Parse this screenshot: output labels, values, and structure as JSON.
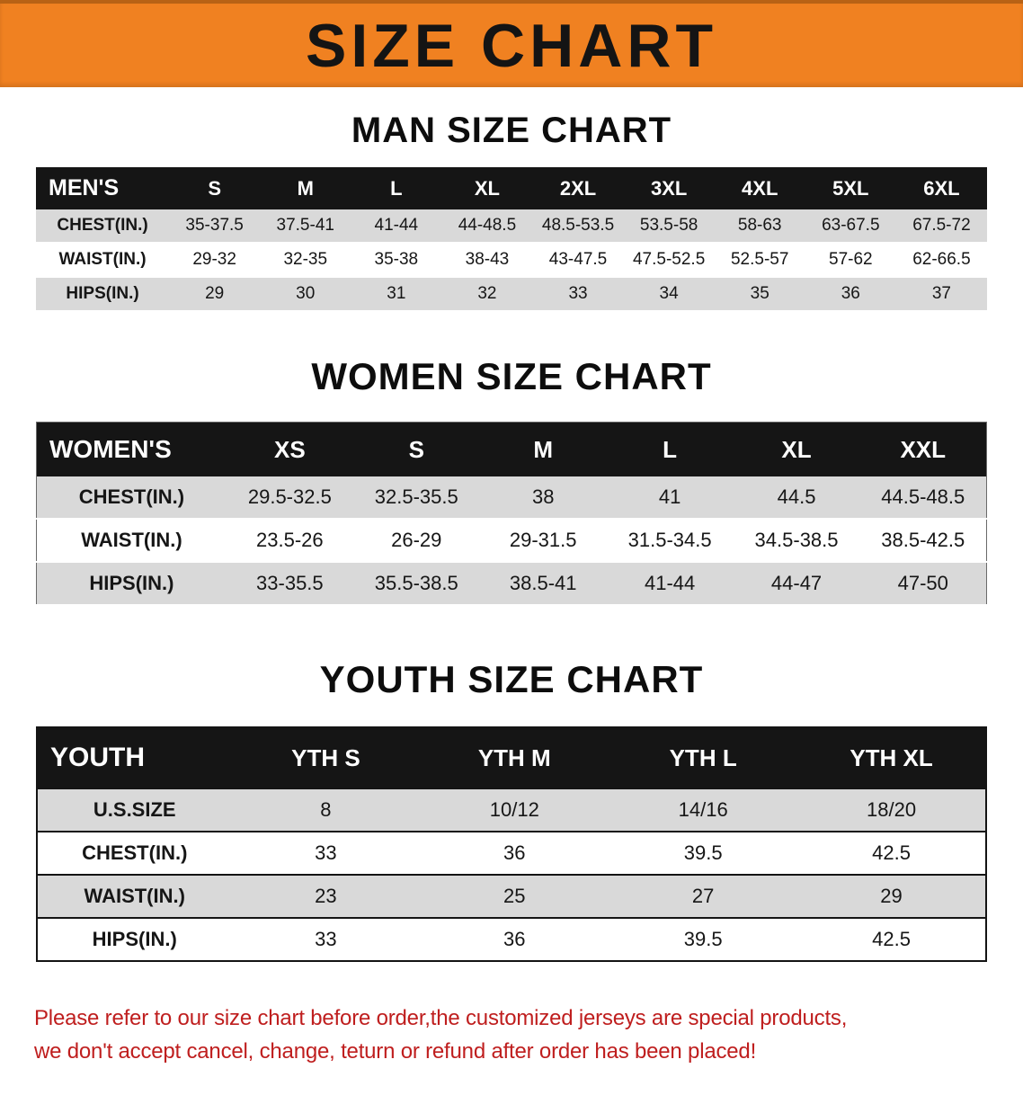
{
  "banner": {
    "title": "SIZE CHART"
  },
  "colors": {
    "banner_bg": "#f08121",
    "table_header_bg": "#151515",
    "row_alt_bg": "#d9d9d9",
    "footer_text": "#bf1e1e"
  },
  "sections": [
    {
      "heading": "MAN SIZE CHART",
      "table": {
        "header": [
          "MEN'S",
          "S",
          "M",
          "L",
          "XL",
          "2XL",
          "3XL",
          "4XL",
          "5XL",
          "6XL"
        ],
        "rows": [
          {
            "label": "CHEST(IN.)",
            "values": [
              "35-37.5",
              "37.5-41",
              "41-44",
              "44-48.5",
              "48.5-53.5",
              "53.5-58",
              "58-63",
              "63-67.5",
              "67.5-72"
            ]
          },
          {
            "label": "WAIST(IN.)",
            "values": [
              "29-32",
              "32-35",
              "35-38",
              "38-43",
              "43-47.5",
              "47.5-52.5",
              "52.5-57",
              "57-62",
              "62-66.5"
            ]
          },
          {
            "label": "HIPS(IN.)",
            "values": [
              "29",
              "30",
              "31",
              "32",
              "33",
              "34",
              "35",
              "36",
              "37"
            ]
          }
        ]
      }
    },
    {
      "heading": "WOMEN SIZE CHART",
      "table": {
        "header": [
          "WOMEN'S",
          "XS",
          "S",
          "M",
          "L",
          "XL",
          "XXL"
        ],
        "rows": [
          {
            "label": "CHEST(IN.)",
            "values": [
              "29.5-32.5",
              "32.5-35.5",
              "38",
              "41",
              "44.5",
              "44.5-48.5"
            ]
          },
          {
            "label": "WAIST(IN.)",
            "values": [
              "23.5-26",
              "26-29",
              "29-31.5",
              "31.5-34.5",
              "34.5-38.5",
              "38.5-42.5"
            ]
          },
          {
            "label": "HIPS(IN.)",
            "values": [
              "33-35.5",
              "35.5-38.5",
              "38.5-41",
              "41-44",
              "44-47",
              "47-50"
            ]
          }
        ]
      }
    },
    {
      "heading": "YOUTH SIZE CHART",
      "table": {
        "header": [
          "YOUTH",
          "YTH S",
          "YTH M",
          "YTH L",
          "YTH XL"
        ],
        "rows": [
          {
            "label": "U.S.SIZE",
            "values": [
              "8",
              "10/12",
              "14/16",
              "18/20"
            ]
          },
          {
            "label": "CHEST(IN.)",
            "values": [
              "33",
              "36",
              "39.5",
              "42.5"
            ]
          },
          {
            "label": "WAIST(IN.)",
            "values": [
              "23",
              "25",
              "27",
              "29"
            ]
          },
          {
            "label": "HIPS(IN.)",
            "values": [
              "33",
              "36",
              "39.5",
              "42.5"
            ]
          }
        ]
      }
    }
  ],
  "footer": {
    "line1": "Please refer to our size chart before order,the customized jerseys are special products,",
    "line2": "we don't accept cancel, change, teturn or refund after order has been placed!"
  }
}
